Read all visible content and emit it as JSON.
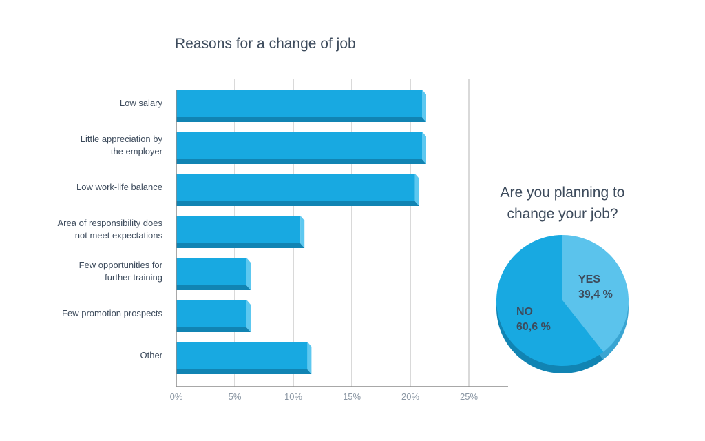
{
  "chart_data": [
    {
      "type": "bar",
      "orientation": "horizontal",
      "title": "Reasons for a change of job",
      "categories": [
        [
          "Low salary"
        ],
        [
          "Little appreciation by",
          "the employer"
        ],
        [
          "Low work-life balance"
        ],
        [
          "Area of responsibility does",
          "not meet expectations"
        ],
        [
          "Few opportunities for",
          "further training"
        ],
        [
          "Few promotion prospects"
        ],
        [
          "Other"
        ]
      ],
      "values": [
        21,
        21,
        20.4,
        10.6,
        6,
        6,
        11.2
      ],
      "xlim": [
        0,
        28
      ],
      "xticks": [
        0,
        5,
        10,
        15,
        20,
        25
      ],
      "xtick_labels": [
        "0%",
        "5%",
        "10%",
        "15%",
        "20%",
        "25%"
      ],
      "grid": true,
      "colors": {
        "bar_front": "#18a9e1",
        "bar_bottom": "#1184b3",
        "bar_side": "#5dc8f0",
        "grid": "#d9d9d9",
        "axis": "#8c8c8c"
      }
    },
    {
      "type": "pie",
      "title": "Are you planning to change your job?",
      "slices": [
        {
          "name": "YES",
          "value": 39.4,
          "label": "39,4 %",
          "color": "#5bc3ec",
          "depth_color": "#3aa5d2"
        },
        {
          "name": "NO",
          "value": 60.6,
          "label": "60,6 %",
          "color": "#18a9e1",
          "depth_color": "#1184b3"
        }
      ]
    }
  ]
}
